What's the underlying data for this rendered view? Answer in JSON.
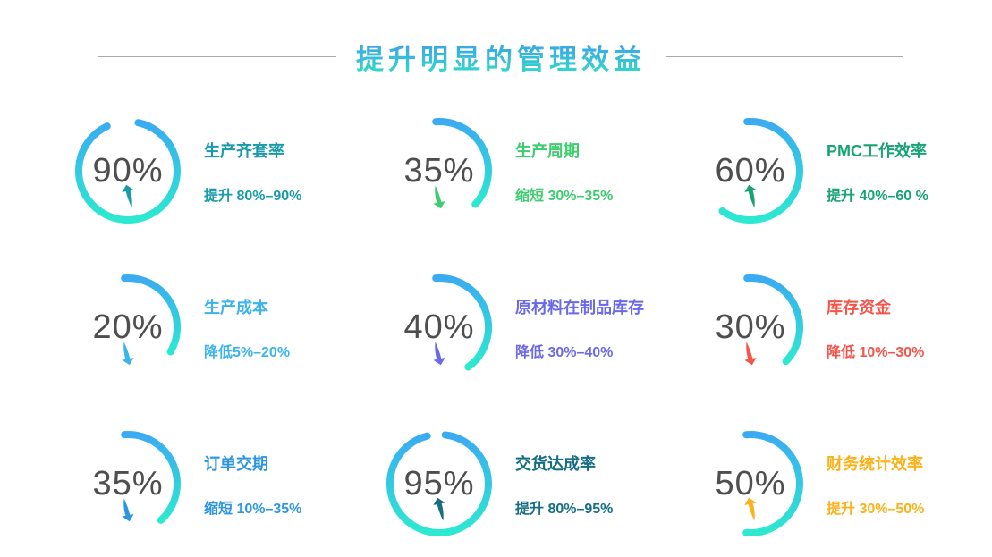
{
  "header": {
    "title": "提升明显的管理效益"
  },
  "theme": {
    "background": "#ffffff",
    "title_gradient_top": "#3f97ef",
    "title_gradient_bottom": "#30dfc5",
    "divider_color": "#a9a9a9",
    "arc_gradient_top": "#3aabf2",
    "arc_gradient_bottom": "#2ce9d0",
    "value_color": "#4e4e4e"
  },
  "chart_data": {
    "type": "gauge",
    "title": "提升明显的管理效益",
    "layout": "3x3-grid",
    "legend": "none",
    "items": [
      {
        "value": "90%",
        "percent": 90,
        "label": "生产齐套率",
        "change": "提升 80%–90%",
        "direction": "up",
        "trend_icon": "swoosh-arrow-up",
        "color": "#189ba8",
        "arc_start_deg": 12,
        "arc_sweep_deg": 323
      },
      {
        "value": "35%",
        "percent": 35,
        "label": "生产周期",
        "change": "缩短 30%–35%",
        "direction": "down",
        "trend_icon": "swoosh-arrow-down",
        "color": "#3fcb70",
        "arc_start_deg": -4,
        "arc_sweep_deg": 137
      },
      {
        "value": "60%",
        "percent": 60,
        "label": "PMC工作效率",
        "change": "提升 40%–60 %",
        "direction": "up",
        "trend_icon": "swoosh-arrow-up",
        "color": "#18a377",
        "arc_start_deg": -4,
        "arc_sweep_deg": 219
      },
      {
        "value": "20%",
        "percent": 20,
        "label": "生产成本",
        "change": "降低5%–20%",
        "direction": "down",
        "trend_icon": "swoosh-arrow-down",
        "color": "#3ab4ea",
        "arc_start_deg": -4,
        "arc_sweep_deg": 124
      },
      {
        "value": "40%",
        "percent": 40,
        "label": "原材料在制品库存",
        "change": "降低 30%–40%",
        "direction": "down",
        "trend_icon": "swoosh-arrow-down",
        "color": "#6a6ae8",
        "arc_start_deg": -4,
        "arc_sweep_deg": 148
      },
      {
        "value": "30%",
        "percent": 30,
        "label": "库存资金",
        "change": "降低 10%–30%",
        "direction": "down",
        "trend_icon": "swoosh-arrow-down",
        "color": "#f4544a",
        "arc_start_deg": -4,
        "arc_sweep_deg": 138
      },
      {
        "value": "35%",
        "percent": 35,
        "label": "订单交期",
        "change": "缩短 10%–35%",
        "direction": "down",
        "trend_icon": "swoosh-arrow-down",
        "color": "#2d96e0",
        "arc_start_deg": -4,
        "arc_sweep_deg": 142
      },
      {
        "value": "95%",
        "percent": 95,
        "label": "交货达成率",
        "change": "提升 80%–95%",
        "direction": "up",
        "trend_icon": "swoosh-arrow-up",
        "color": "#176e84",
        "arc_start_deg": 7,
        "arc_sweep_deg": 339
      },
      {
        "value": "50%",
        "percent": 50,
        "label": "财务统计效率",
        "change": "提升 30%–50%",
        "direction": "up",
        "trend_icon": "swoosh-arrow-up",
        "color": "#fbb117",
        "arc_start_deg": -5,
        "arc_sweep_deg": 190
      }
    ]
  }
}
